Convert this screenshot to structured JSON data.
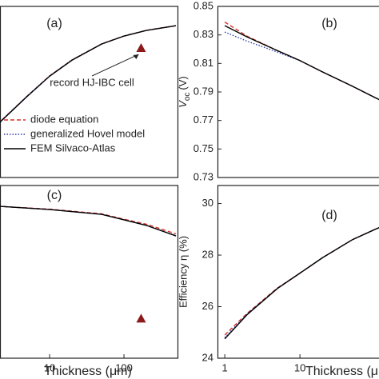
{
  "chart_data": [
    {
      "type": "line",
      "panel_label": "(a)",
      "log_x": true,
      "xlim": [
        2.15,
        525
      ],
      "ylim": [
        30,
        44
      ],
      "x": [
        2,
        5,
        10,
        20,
        50,
        100,
        200,
        500
      ],
      "series": [
        {
          "name": "diode equation",
          "color": "#d9302a",
          "dash": "dashed",
          "values": [
            34.38,
            36.67,
            38.31,
            39.62,
            40.93,
            41.58,
            42.04,
            42.43
          ]
        },
        {
          "name": "generalized Hovel model",
          "color": "#2b3fa6",
          "dash": "dotted",
          "values": [
            34.38,
            36.67,
            38.31,
            39.62,
            40.93,
            41.58,
            42.04,
            42.43
          ]
        },
        {
          "name": "FEM Silvaco-Atlas",
          "color": "#000000",
          "dash": "solid",
          "values": [
            34.35,
            36.64,
            38.29,
            39.6,
            40.92,
            41.57,
            42.03,
            42.42
          ]
        }
      ],
      "legend": "lower left",
      "record": {
        "x": 170,
        "y": 40.6,
        "color": "#8b1a1a"
      },
      "annotation": "record HJ-IBC cell"
    },
    {
      "type": "line",
      "panel_label": "(b)",
      "log_x": true,
      "xlim": [
        0.8,
        300
      ],
      "ylim": [
        0.73,
        0.85
      ],
      "ylabel_main": "V",
      "ylabel_sub": "oc",
      "ylabel_unit": "(V)",
      "yticks": [
        0.73,
        0.75,
        0.77,
        0.79,
        0.81,
        0.83,
        0.85
      ],
      "x": [
        1,
        2,
        5,
        10,
        20,
        50,
        100,
        120
      ],
      "series": [
        {
          "color": "#d9302a",
          "dash": "dashed",
          "values": [
            0.839,
            0.829,
            0.819,
            0.812,
            0.804,
            0.794,
            0.786,
            0.784
          ]
        },
        {
          "color": "#2b3fa6",
          "dash": "dotted",
          "values": [
            0.832,
            0.8255,
            0.818,
            0.812,
            0.804,
            0.794,
            0.786,
            0.784
          ]
        },
        {
          "color": "#000000",
          "dash": "solid",
          "values": [
            0.8365,
            0.8285,
            0.819,
            0.812,
            0.804,
            0.794,
            0.786,
            0.784
          ]
        }
      ]
    },
    {
      "type": "line",
      "panel_label": "(c)",
      "log_x": true,
      "xlim": [
        2.15,
        525
      ],
      "ylim": [
        76,
        86
      ],
      "xlabel": "Thickness (μm)",
      "xticks": [
        10,
        100
      ],
      "x": [
        2,
        10,
        50,
        100,
        200,
        500
      ],
      "series": [
        {
          "color": "#d9302a",
          "dash": "dashed",
          "values": [
            84.8,
            84.63,
            84.36,
            84.05,
            83.76,
            83.2
          ]
        },
        {
          "color": "#2b3fa6",
          "dash": "dotted",
          "values": [
            84.8,
            84.61,
            84.33,
            84.01,
            83.7,
            83.1
          ]
        },
        {
          "color": "#000000",
          "dash": "solid",
          "values": [
            84.8,
            84.61,
            84.33,
            84.01,
            83.69,
            83.08
          ]
        }
      ],
      "record": {
        "x": 170,
        "y": 78.3,
        "color": "#8b1a1a"
      }
    },
    {
      "type": "line",
      "panel_label": "(d)",
      "log_x": true,
      "xlim": [
        0.8,
        300
      ],
      "ylim": [
        24,
        30.7
      ],
      "xlabel": "Thickness (μm)",
      "xticks": [
        1,
        10
      ],
      "ylabel": "Efficiency η (%)",
      "yticks": [
        24,
        26,
        28,
        30
      ],
      "x": [
        1,
        2,
        5,
        10,
        20,
        50,
        100,
        120
      ],
      "series": [
        {
          "color": "#d9302a",
          "dash": "dashed",
          "values": [
            24.9,
            25.75,
            26.72,
            27.3,
            27.9,
            28.6,
            29.0,
            29.1
          ]
        },
        {
          "color": "#2b3fa6",
          "dash": "dotted",
          "values": [
            24.8,
            25.72,
            26.71,
            27.3,
            27.9,
            28.6,
            29.0,
            29.1
          ]
        },
        {
          "color": "#000000",
          "dash": "solid",
          "values": [
            24.75,
            25.7,
            26.7,
            27.3,
            27.9,
            28.6,
            29.0,
            29.1
          ]
        }
      ]
    }
  ]
}
